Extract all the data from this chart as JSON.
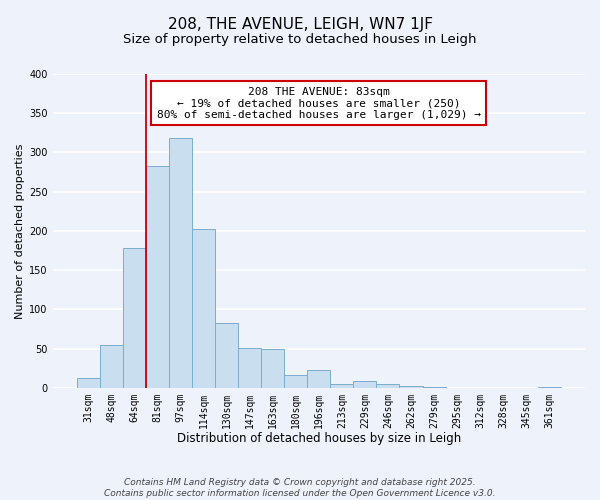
{
  "title": "208, THE AVENUE, LEIGH, WN7 1JF",
  "subtitle": "Size of property relative to detached houses in Leigh",
  "xlabel": "Distribution of detached houses by size in Leigh",
  "ylabel": "Number of detached properties",
  "bar_labels": [
    "31sqm",
    "48sqm",
    "64sqm",
    "81sqm",
    "97sqm",
    "114sqm",
    "130sqm",
    "147sqm",
    "163sqm",
    "180sqm",
    "196sqm",
    "213sqm",
    "229sqm",
    "246sqm",
    "262sqm",
    "279sqm",
    "295sqm",
    "312sqm",
    "328sqm",
    "345sqm",
    "361sqm"
  ],
  "bar_values": [
    13,
    54,
    178,
    283,
    318,
    203,
    83,
    51,
    50,
    16,
    23,
    5,
    9,
    5,
    2,
    1,
    0,
    0,
    0,
    0,
    1
  ],
  "bar_color": "#c9dff0",
  "bar_edge_color": "#7aadcf",
  "vline_x_index": 3,
  "vline_color": "#cc0000",
  "annotation_text": "208 THE AVENUE: 83sqm\n← 19% of detached houses are smaller (250)\n80% of semi-detached houses are larger (1,029) →",
  "annotation_box_color": "#ffffff",
  "annotation_box_edge_color": "#cc0000",
  "ylim": [
    0,
    400
  ],
  "yticks": [
    0,
    50,
    100,
    150,
    200,
    250,
    300,
    350,
    400
  ],
  "background_color": "#eef2fb",
  "grid_color": "#ffffff",
  "footer_line1": "Contains HM Land Registry data © Crown copyright and database right 2025.",
  "footer_line2": "Contains public sector information licensed under the Open Government Licence v3.0.",
  "title_fontsize": 11,
  "subtitle_fontsize": 9.5,
  "xlabel_fontsize": 8.5,
  "ylabel_fontsize": 8,
  "tick_fontsize": 7,
  "annotation_fontsize": 8,
  "footer_fontsize": 6.5
}
